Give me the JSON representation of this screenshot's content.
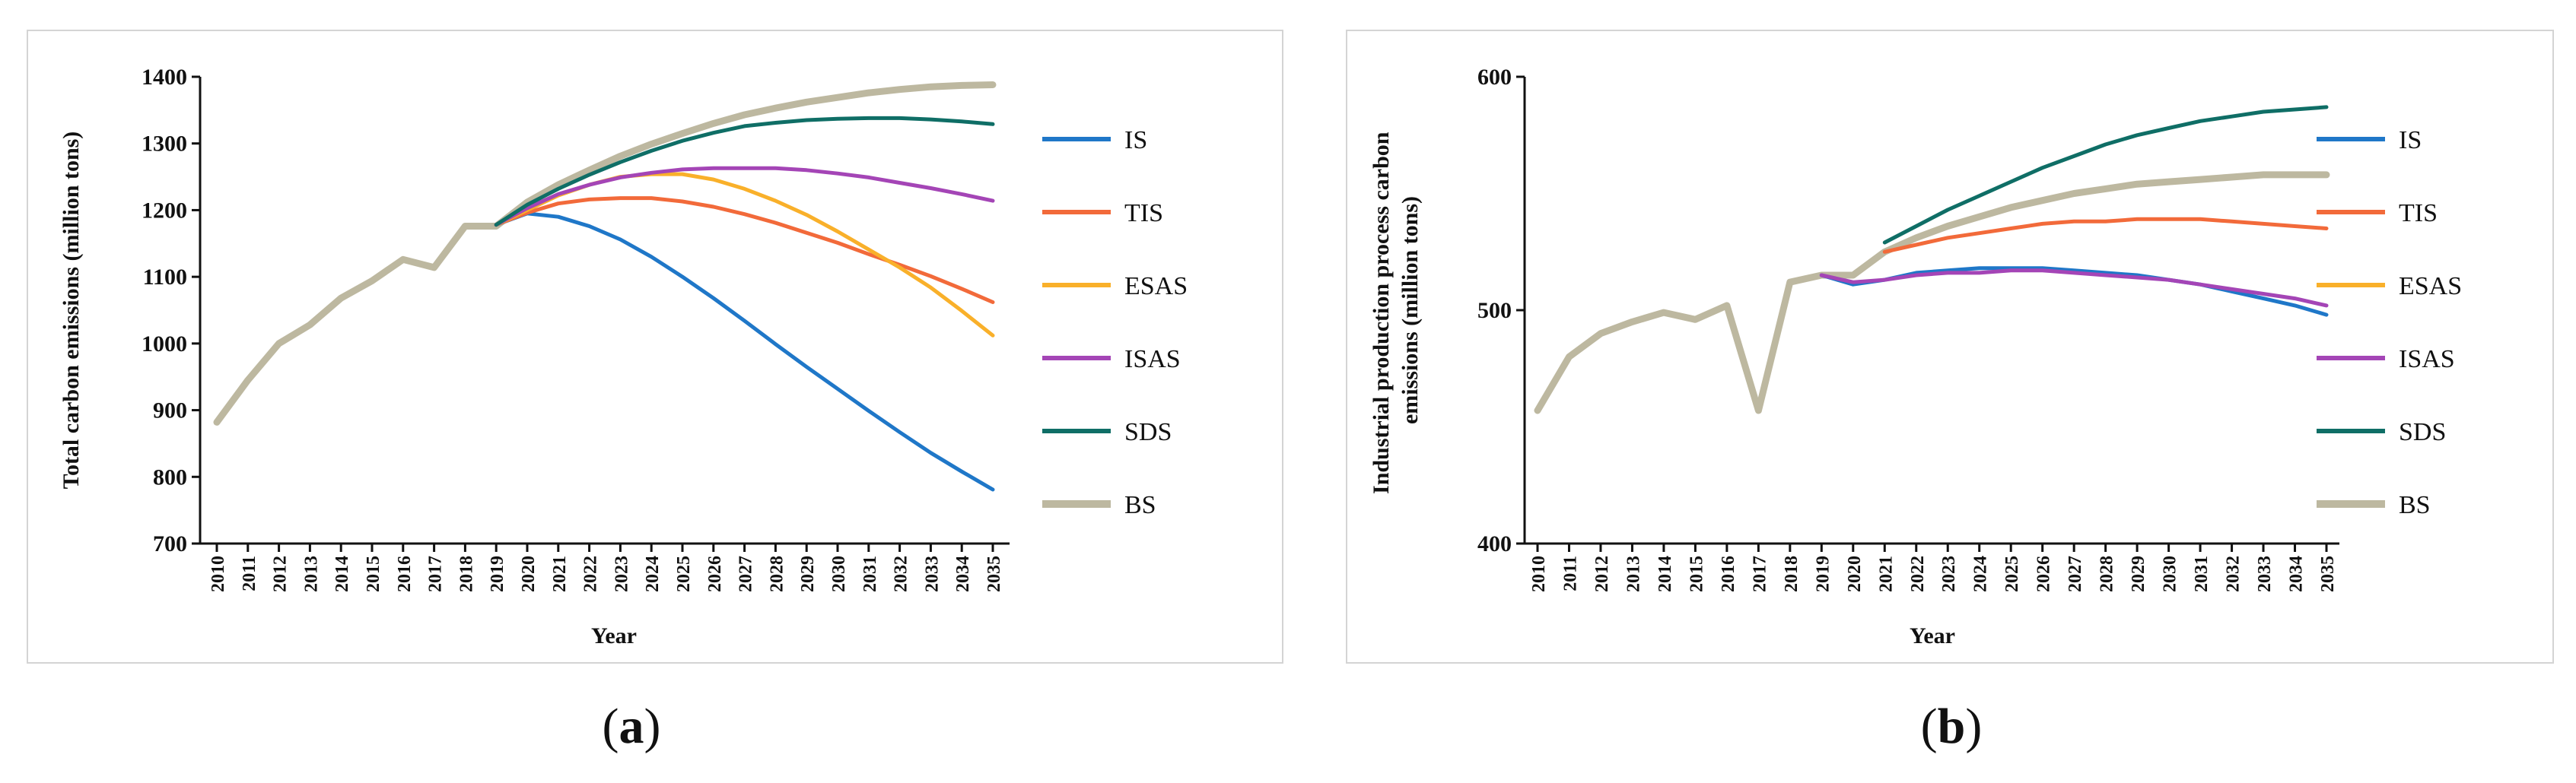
{
  "chart_data": [
    {
      "type": "line",
      "id": "a",
      "caption_open": "(",
      "caption_letter": "a",
      "caption_close": ")",
      "xlabel": "Year",
      "ylabel": "Total carbon emissions (million tons)",
      "ylim": [
        700,
        1400
      ],
      "yticks": [
        "700",
        "800",
        "900",
        "1000",
        "1100",
        "1200",
        "1300",
        "1400"
      ],
      "x": [
        "2010",
        "2011",
        "2012",
        "2013",
        "2014",
        "2015",
        "2016",
        "2017",
        "2018",
        "2019",
        "2020",
        "2021",
        "2022",
        "2023",
        "2024",
        "2025",
        "2026",
        "2027",
        "2028",
        "2029",
        "2030",
        "2031",
        "2032",
        "2033",
        "2034",
        "2035"
      ],
      "series": [
        {
          "name": "IS",
          "color": "#1f77c8",
          "width": 5,
          "values": [
            null,
            null,
            null,
            null,
            null,
            null,
            null,
            null,
            null,
            1178,
            1195,
            1190,
            1176,
            1156,
            1130,
            1100,
            1068,
            1034,
            999,
            965,
            932,
            899,
            867,
            836,
            808,
            781
          ]
        },
        {
          "name": "TIS",
          "color": "#f26a3a",
          "width": 5,
          "values": [
            null,
            null,
            null,
            null,
            null,
            null,
            null,
            null,
            null,
            1178,
            1196,
            1210,
            1216,
            1218,
            1218,
            1213,
            1205,
            1194,
            1181,
            1166,
            1151,
            1134,
            1118,
            1101,
            1082,
            1062
          ]
        },
        {
          "name": "ESAS",
          "color": "#f9b02a",
          "width": 5,
          "values": [
            null,
            null,
            null,
            null,
            null,
            null,
            null,
            null,
            null,
            1178,
            1200,
            1222,
            1238,
            1250,
            1254,
            1254,
            1246,
            1232,
            1214,
            1193,
            1168,
            1141,
            1114,
            1084,
            1049,
            1012
          ]
        },
        {
          "name": "ISAS",
          "color": "#a445b6",
          "width": 5,
          "values": [
            null,
            null,
            null,
            null,
            null,
            null,
            null,
            null,
            null,
            1178,
            1203,
            1224,
            1238,
            1249,
            1256,
            1261,
            1263,
            1263,
            1263,
            1260,
            1255,
            1249,
            1241,
            1233,
            1224,
            1214
          ]
        },
        {
          "name": "SDS",
          "color": "#0f6e66",
          "width": 5,
          "values": [
            null,
            null,
            null,
            null,
            null,
            null,
            null,
            null,
            null,
            1178,
            1208,
            1232,
            1253,
            1272,
            1289,
            1304,
            1316,
            1326,
            1331,
            1335,
            1337,
            1338,
            1338,
            1336,
            1333,
            1329
          ]
        },
        {
          "name": "BS",
          "color": "#bdb8a0",
          "width": 9,
          "values": [
            882,
            945,
            1000,
            1028,
            1068,
            1094,
            1126,
            1114,
            1176,
            1176,
            1212,
            1238,
            1260,
            1281,
            1299,
            1315,
            1330,
            1343,
            1353,
            1362,
            1369,
            1376,
            1381,
            1385,
            1387,
            1388
          ]
        }
      ]
    },
    {
      "type": "line",
      "id": "b",
      "caption_open": "(",
      "caption_letter": "b",
      "caption_close": ")",
      "xlabel": "Year",
      "ylabel_line1": "Industrial production process carbon",
      "ylabel_line2": "emissions (million tons)",
      "ylim": [
        400,
        600
      ],
      "yticks": [
        "400",
        "500",
        "600"
      ],
      "x": [
        "2010",
        "2011",
        "2012",
        "2013",
        "2014",
        "2015",
        "2016",
        "2017",
        "2018",
        "2019",
        "2020",
        "2021",
        "2022",
        "2023",
        "2024",
        "2025",
        "2026",
        "2027",
        "2028",
        "2029",
        "2030",
        "2031",
        "2032",
        "2033",
        "2034",
        "2035"
      ],
      "series": [
        {
          "name": "IS",
          "color": "#1f77c8",
          "width": 5,
          "values": [
            null,
            null,
            null,
            null,
            null,
            null,
            null,
            null,
            null,
            515,
            511,
            513,
            516,
            517,
            518,
            518,
            518,
            517,
            516,
            515,
            513,
            511,
            508,
            505,
            502,
            498
          ]
        },
        {
          "name": "TIS",
          "color": "#f26a3a",
          "width": 5,
          "values": [
            null,
            null,
            null,
            null,
            null,
            null,
            null,
            null,
            null,
            null,
            null,
            525,
            528,
            531,
            533,
            535,
            537,
            538,
            538,
            539,
            539,
            539,
            538,
            537,
            536,
            535
          ]
        },
        {
          "name": "ESAS",
          "color": "#f9b02a",
          "width": 5,
          "values": [
            null,
            null,
            null,
            null,
            null,
            null,
            null,
            null,
            null,
            null,
            null,
            null,
            null,
            null,
            null,
            null,
            null,
            null,
            null,
            null,
            null,
            null,
            null,
            null,
            null,
            null
          ]
        },
        {
          "name": "ISAS",
          "color": "#a445b6",
          "width": 5,
          "values": [
            null,
            null,
            null,
            null,
            null,
            null,
            null,
            null,
            null,
            515,
            512,
            513,
            515,
            516,
            516,
            517,
            517,
            516,
            515,
            514,
            513,
            511,
            509,
            507,
            505,
            502
          ]
        },
        {
          "name": "SDS",
          "color": "#0f6e66",
          "width": 5,
          "values": [
            null,
            null,
            null,
            null,
            null,
            null,
            null,
            null,
            null,
            null,
            null,
            529,
            536,
            543,
            549,
            555,
            561,
            566,
            571,
            575,
            578,
            581,
            583,
            585,
            586,
            587
          ]
        },
        {
          "name": "BS",
          "color": "#bdb8a0",
          "width": 9,
          "values": [
            457,
            480,
            490,
            495,
            499,
            496,
            502,
            457,
            512,
            515,
            515,
            525,
            531,
            536,
            540,
            544,
            547,
            550,
            552,
            554,
            555,
            556,
            557,
            558,
            558,
            558
          ]
        }
      ]
    }
  ]
}
